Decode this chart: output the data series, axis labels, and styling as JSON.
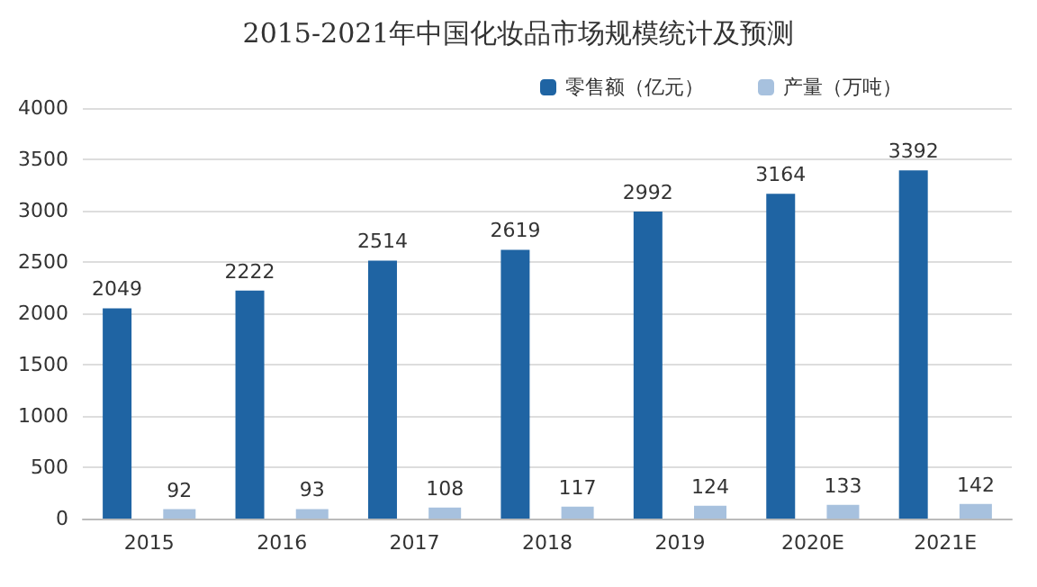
{
  "chart_data": {
    "type": "bar",
    "title": "2015-2021年中国化妆品市场规模统计及预测",
    "categories": [
      "2015",
      "2016",
      "2017",
      "2018",
      "2019",
      "2020E",
      "2021E"
    ],
    "series": [
      {
        "name": "零售额（亿元）",
        "color": "#1f64a3",
        "values": [
          2049,
          2222,
          2514,
          2619,
          2992,
          3164,
          3392
        ]
      },
      {
        "name": "产量（万吨）",
        "color": "#a7c1de",
        "values": [
          92,
          93,
          108,
          117,
          124,
          133,
          142
        ]
      }
    ],
    "ylim": [
      0,
      4000
    ],
    "yticks": [
      0,
      500,
      1000,
      1500,
      2000,
      2500,
      3000,
      3500,
      4000
    ],
    "grid": "y",
    "legend": "top right",
    "data_labels": true
  }
}
